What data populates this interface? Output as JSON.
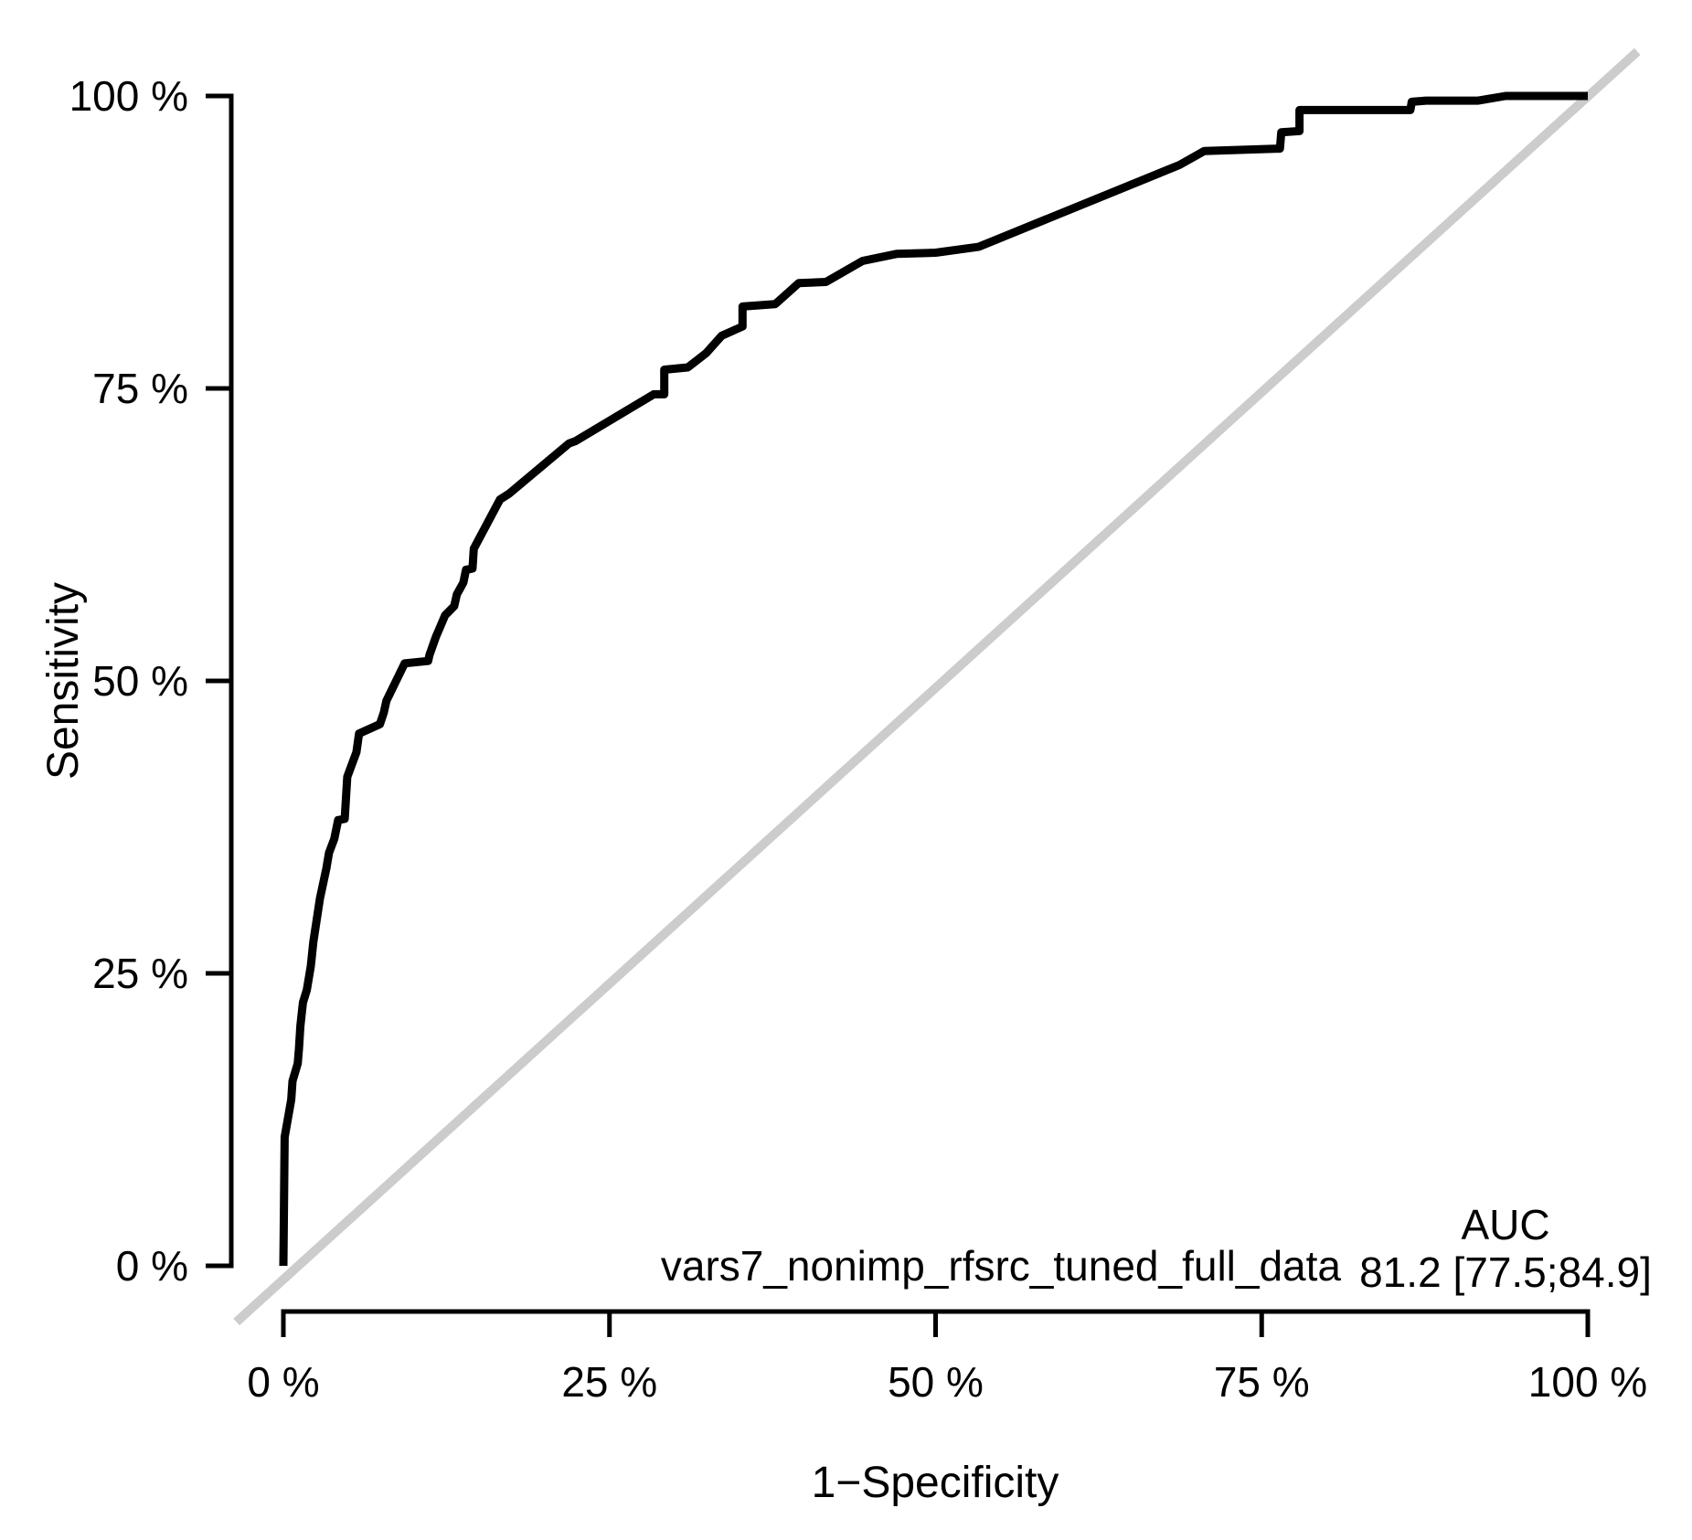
{
  "figure": {
    "background": "#ffffff"
  },
  "chart_data": {
    "type": "line",
    "title": "",
    "xlabel": "1−Specificity",
    "ylabel": "Sensitivity",
    "xlim": [
      0,
      100
    ],
    "ylim": [
      0,
      100
    ],
    "grid": false,
    "x_tick_values": [
      0,
      25,
      50,
      75,
      100
    ],
    "x_tick_labels": [
      "0 %",
      "25 %",
      "50 %",
      "75 %",
      "100 %"
    ],
    "y_tick_values": [
      0,
      25,
      50,
      75,
      100
    ],
    "y_tick_labels": [
      "0 %",
      "25 %",
      "50 %",
      "75 %",
      "100 %"
    ],
    "legend": {
      "position": "bottom-right",
      "header": "AUC",
      "model_label": "vars7_nonimp_rfsrc_tuned_full_data",
      "auc_value": "81.2 [77.5;84.9]"
    },
    "series": [
      {
        "name": "vars7_nonimp_rfsrc_tuned_full_data",
        "auc": 81.2,
        "auc_ci_lower": 77.5,
        "auc_ci_upper": 84.9,
        "color": "#000000",
        "points": [
          [
            0,
            0
          ],
          [
            0.1,
            11
          ],
          [
            0.3,
            12.3
          ],
          [
            0.6,
            14.2
          ],
          [
            0.7,
            15.8
          ],
          [
            1.1,
            17.3
          ],
          [
            1.2,
            18.6
          ],
          [
            1.3,
            20.5
          ],
          [
            1.5,
            22.5
          ],
          [
            1.8,
            23.6
          ],
          [
            2.1,
            25.6
          ],
          [
            2.3,
            27.7
          ],
          [
            2.8,
            31.4
          ],
          [
            3.3,
            34
          ],
          [
            3.5,
            35.3
          ],
          [
            3.9,
            36.5
          ],
          [
            4.2,
            38.1
          ],
          [
            4.7,
            38.2
          ],
          [
            4.9,
            41.8
          ],
          [
            5.6,
            43.9
          ],
          [
            5.8,
            45.5
          ],
          [
            7.4,
            46.3
          ],
          [
            7.7,
            47.3
          ],
          [
            7.9,
            48.3
          ],
          [
            9.3,
            51.5
          ],
          [
            11.1,
            51.7
          ],
          [
            11.2,
            52.2
          ],
          [
            11.7,
            53.8
          ],
          [
            11.9,
            54.3
          ],
          [
            12.4,
            55.6
          ],
          [
            13.1,
            56.4
          ],
          [
            13.3,
            57.4
          ],
          [
            13.8,
            58.4
          ],
          [
            14,
            59.5
          ],
          [
            14.5,
            59.6
          ],
          [
            14.6,
            61.3
          ],
          [
            15.6,
            63.4
          ],
          [
            16.6,
            65.5
          ],
          [
            17.3,
            66
          ],
          [
            21.9,
            70.3
          ],
          [
            22.4,
            70.5
          ],
          [
            28.4,
            74.5
          ],
          [
            29.2,
            74.5
          ],
          [
            29.2,
            76.6
          ],
          [
            31,
            76.8
          ],
          [
            32.4,
            78
          ],
          [
            33.6,
            79.5
          ],
          [
            35.2,
            80.3
          ],
          [
            35.2,
            82
          ],
          [
            37.7,
            82.2
          ],
          [
            38.8,
            83.3
          ],
          [
            39.5,
            84
          ],
          [
            41.6,
            84.1
          ],
          [
            44.4,
            85.9
          ],
          [
            47,
            86.5
          ],
          [
            50,
            86.6
          ],
          [
            53.3,
            87.1
          ],
          [
            68.7,
            94.1
          ],
          [
            70.6,
            95.3
          ],
          [
            76.4,
            95.5
          ],
          [
            76.5,
            96.9
          ],
          [
            77.9,
            97
          ],
          [
            77.9,
            98.8
          ],
          [
            86.4,
            98.8
          ],
          [
            86.5,
            99.5
          ],
          [
            87.6,
            99.6
          ],
          [
            91.6,
            99.6
          ],
          [
            93.7,
            100
          ],
          [
            100,
            100
          ]
        ]
      }
    ],
    "reference_line": {
      "color": "#cccccc",
      "from": [
        -3.6,
        -4.8
      ],
      "to": [
        103.8,
        103.8
      ]
    }
  }
}
